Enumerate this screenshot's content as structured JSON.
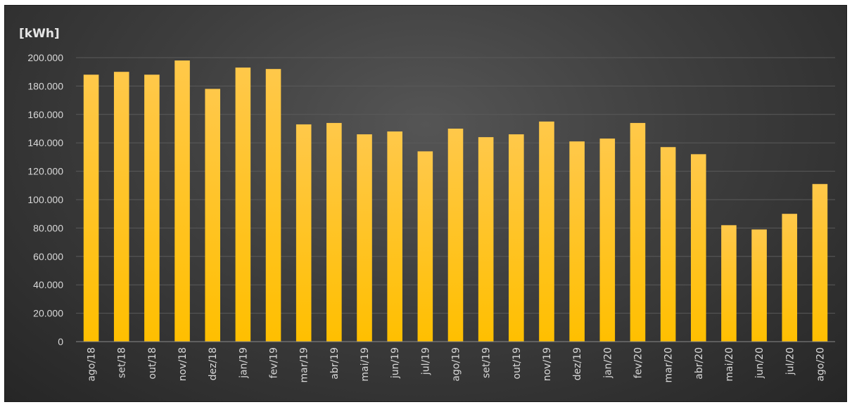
{
  "chart_data": {
    "type": "bar",
    "title": "",
    "xlabel": "",
    "ylabel": "[kWh]",
    "ylim": [
      0,
      200000
    ],
    "yticks": [
      0,
      20000,
      40000,
      60000,
      80000,
      100000,
      120000,
      140000,
      160000,
      180000,
      200000
    ],
    "ytick_labels": [
      "0",
      "20.000",
      "40.000",
      "60.000",
      "80.000",
      "100.000",
      "120.000",
      "140.000",
      "160.000",
      "180.000",
      "200.000"
    ],
    "grid": true,
    "bar_color": "#ffc000",
    "categories": [
      "ago/18",
      "set/18",
      "out/18",
      "nov/18",
      "dez/18",
      "jan/19",
      "fev/19",
      "mar/19",
      "abr/19",
      "mai/19",
      "jun/19",
      "jul/19",
      "ago/19",
      "set/19",
      "out/19",
      "nov/19",
      "dez/19",
      "jan/20",
      "fev/20",
      "mar/20",
      "abr/20",
      "mai/20",
      "jun/20",
      "jul/20",
      "ago/20"
    ],
    "values": [
      188000,
      190000,
      188000,
      198000,
      178000,
      193000,
      192000,
      153000,
      154000,
      146000,
      148000,
      134000,
      150000,
      144000,
      146000,
      155000,
      141000,
      143000,
      154000,
      137000,
      132000,
      82000,
      79000,
      90000,
      111000
    ]
  }
}
